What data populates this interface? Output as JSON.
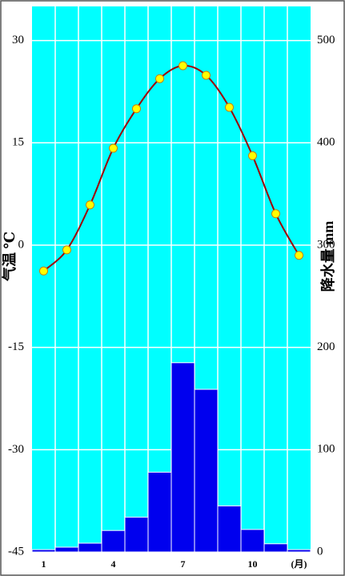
{
  "chart_data": {
    "type": "climate",
    "categories": [
      "1",
      null,
      null,
      "4",
      null,
      null,
      "7",
      null,
      null,
      "10",
      null,
      "(月)"
    ],
    "series": [
      {
        "name": "气温",
        "type": "line",
        "color": "#a00000",
        "marker_color": "#ffff00",
        "values": [
          -3.8,
          -0.7,
          5.9,
          14.2,
          20.0,
          24.4,
          26.3,
          24.9,
          20.2,
          13.1,
          4.6,
          -1.5
        ]
      },
      {
        "name": "降水量",
        "type": "bar",
        "axis": "y2",
        "color": "#0000ee",
        "values": [
          2.3,
          4.7,
          8.6,
          21,
          34,
          78,
          185,
          159,
          45,
          22,
          8,
          2.3
        ]
      }
    ],
    "ylabel": "气温 ℃",
    "y2label": "降水量 mm",
    "ylim": [
      -45,
      35
    ],
    "yticks": [
      -45,
      -30,
      -15,
      0,
      15,
      30
    ],
    "y2lim": [
      0,
      533.33
    ],
    "y2ticks": [
      0,
      100,
      200,
      300,
      400,
      500
    ],
    "background": "#00ffff",
    "grid": true
  }
}
